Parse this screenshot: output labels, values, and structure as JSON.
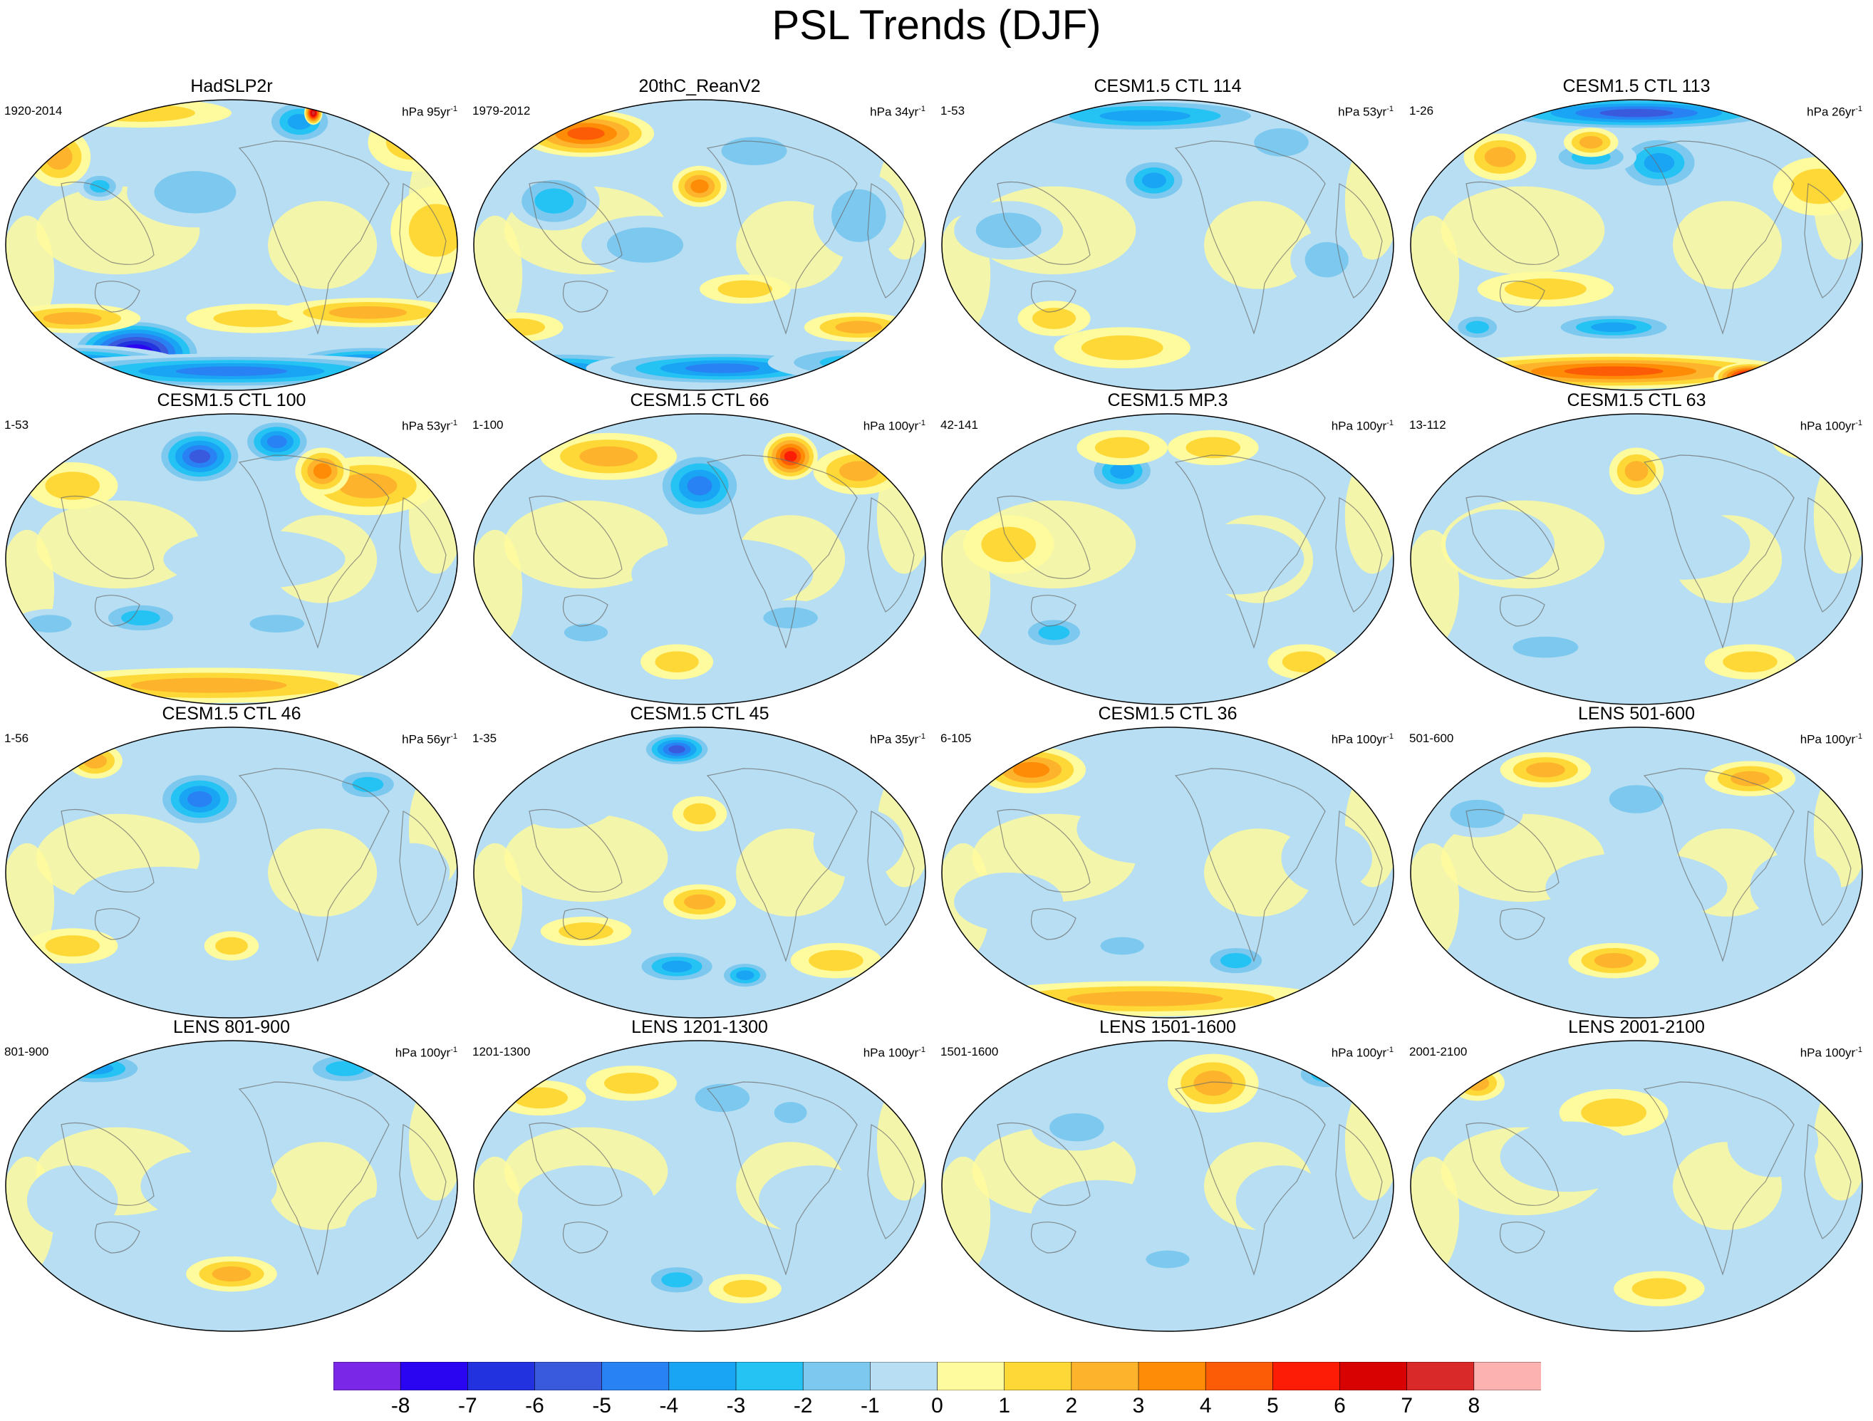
{
  "chart_data": {
    "type": "heatmap",
    "title": "PSL Trends (DJF)",
    "projection": "Robinson (Pacific-centered)",
    "units_label": "hPa",
    "panels": [
      {
        "title": "HadSLP2r",
        "period": "1920-2014",
        "units": "hPa 95yr",
        "units_years": 95,
        "blobs": [
          [
            0.29,
            0.87,
            0.15,
            0.12,
            -9
          ],
          [
            0.15,
            0.91,
            0.25,
            0.07,
            -6
          ],
          [
            0.8,
            0.91,
            0.2,
            0.07,
            -6
          ],
          [
            0.5,
            0.93,
            0.45,
            0.06,
            -5
          ],
          [
            0.15,
            0.75,
            0.15,
            0.05,
            3
          ],
          [
            0.55,
            0.75,
            0.15,
            0.05,
            2
          ],
          [
            0.8,
            0.73,
            0.2,
            0.05,
            3
          ],
          [
            0.12,
            0.2,
            0.07,
            0.1,
            3
          ],
          [
            0.21,
            0.3,
            0.05,
            0.05,
            -3
          ],
          [
            0.65,
            0.08,
            0.08,
            0.08,
            -4
          ],
          [
            0.68,
            0.05,
            0.02,
            0.04,
            8
          ],
          [
            0.3,
            0.05,
            0.2,
            0.05,
            2
          ],
          [
            0.9,
            0.15,
            0.1,
            0.1,
            2
          ],
          [
            0.42,
            0.32,
            0.15,
            0.12,
            -2
          ],
          [
            0.95,
            0.45,
            0.1,
            0.15,
            2
          ]
        ]
      },
      {
        "title": "20thC_ReanV2",
        "period": "1979-2012",
        "units": "hPa 34yr",
        "units_years": 34,
        "blobs": [
          [
            0.25,
            0.12,
            0.15,
            0.08,
            5
          ],
          [
            0.5,
            0.3,
            0.06,
            0.07,
            4
          ],
          [
            0.18,
            0.35,
            0.1,
            0.1,
            -3
          ],
          [
            0.2,
            0.92,
            0.25,
            0.06,
            -4
          ],
          [
            0.55,
            0.92,
            0.3,
            0.06,
            -5
          ],
          [
            0.85,
            0.9,
            0.2,
            0.06,
            -3
          ],
          [
            0.1,
            0.78,
            0.1,
            0.05,
            2
          ],
          [
            0.85,
            0.78,
            0.12,
            0.05,
            3
          ],
          [
            0.6,
            0.65,
            0.1,
            0.05,
            2
          ],
          [
            0.85,
            0.4,
            0.1,
            0.15,
            -2
          ],
          [
            0.62,
            0.18,
            0.12,
            0.08,
            -2
          ],
          [
            0.38,
            0.5,
            0.14,
            0.1,
            -2
          ]
        ]
      },
      {
        "title": "CESM1.5 CTL 114",
        "period": "1-53",
        "units": "hPa 53yr",
        "units_years": 53,
        "blobs": [
          [
            0.45,
            0.06,
            0.3,
            0.06,
            -4
          ],
          [
            0.47,
            0.28,
            0.08,
            0.08,
            -4
          ],
          [
            0.75,
            0.15,
            0.1,
            0.08,
            -2
          ],
          [
            0.4,
            0.85,
            0.15,
            0.07,
            2
          ],
          [
            0.25,
            0.75,
            0.08,
            0.06,
            2
          ],
          [
            0.85,
            0.55,
            0.08,
            0.1,
            -2
          ],
          [
            0.15,
            0.45,
            0.12,
            0.1,
            -2
          ]
        ]
      },
      {
        "title": "CESM1.5 CTL 113",
        "period": "1-26",
        "units": "hPa 26yr",
        "units_years": 26,
        "blobs": [
          [
            0.5,
            0.05,
            0.35,
            0.06,
            -6
          ],
          [
            0.55,
            0.22,
            0.1,
            0.1,
            -4
          ],
          [
            0.4,
            0.2,
            0.1,
            0.06,
            -3
          ],
          [
            0.45,
            0.93,
            0.4,
            0.06,
            5
          ],
          [
            0.75,
            0.95,
            0.08,
            0.05,
            8
          ],
          [
            0.45,
            0.78,
            0.15,
            0.05,
            -4
          ],
          [
            0.15,
            0.78,
            0.06,
            0.05,
            -3
          ],
          [
            0.2,
            0.2,
            0.08,
            0.08,
            3
          ],
          [
            0.4,
            0.15,
            0.06,
            0.05,
            3
          ],
          [
            0.3,
            0.65,
            0.15,
            0.06,
            2
          ],
          [
            0.9,
            0.3,
            0.1,
            0.1,
            2
          ]
        ]
      },
      {
        "title": "CESM1.5 CTL 100",
        "period": "1-53",
        "units": "hPa 53yr",
        "units_years": 53,
        "blobs": [
          [
            0.43,
            0.15,
            0.1,
            0.1,
            -6
          ],
          [
            0.6,
            0.1,
            0.08,
            0.08,
            -5
          ],
          [
            0.8,
            0.25,
            0.15,
            0.1,
            3
          ],
          [
            0.7,
            0.2,
            0.06,
            0.08,
            4
          ],
          [
            0.45,
            0.93,
            0.4,
            0.06,
            3
          ],
          [
            0.3,
            0.7,
            0.1,
            0.06,
            -3
          ],
          [
            0.1,
            0.72,
            0.08,
            0.05,
            -2
          ],
          [
            0.6,
            0.72,
            0.1,
            0.05,
            -2
          ],
          [
            0.15,
            0.25,
            0.1,
            0.08,
            2
          ],
          [
            0.55,
            0.5,
            0.2,
            0.1,
            -1
          ]
        ]
      },
      {
        "title": "CESM1.5 CTL 66",
        "period": "1-100",
        "units": "hPa 100yr",
        "units_years": 100,
        "blobs": [
          [
            0.5,
            0.25,
            0.1,
            0.12,
            -5
          ],
          [
            0.7,
            0.15,
            0.06,
            0.08,
            6
          ],
          [
            0.3,
            0.15,
            0.15,
            0.08,
            3
          ],
          [
            0.85,
            0.2,
            0.1,
            0.08,
            3
          ],
          [
            0.45,
            0.85,
            0.08,
            0.06,
            2
          ],
          [
            0.25,
            0.75,
            0.08,
            0.05,
            -2
          ],
          [
            0.7,
            0.7,
            0.1,
            0.06,
            -2
          ],
          [
            0.55,
            0.55,
            0.2,
            0.12,
            -1
          ]
        ]
      },
      {
        "title": "CESM1.5 MP.3",
        "period": "42-141",
        "units": "hPa 100yr",
        "units_years": 100,
        "blobs": [
          [
            0.4,
            0.2,
            0.08,
            0.08,
            -4
          ],
          [
            0.25,
            0.75,
            0.08,
            0.06,
            -3
          ],
          [
            0.4,
            0.12,
            0.1,
            0.06,
            2
          ],
          [
            0.6,
            0.12,
            0.1,
            0.06,
            2
          ],
          [
            0.8,
            0.85,
            0.08,
            0.06,
            2
          ],
          [
            0.65,
            0.5,
            0.15,
            0.12,
            -1
          ],
          [
            0.15,
            0.45,
            0.1,
            0.1,
            2
          ]
        ]
      },
      {
        "title": "CESM1.5 CTL 63",
        "period": "13-112",
        "units": "hPa 100yr",
        "units_years": 100,
        "blobs": [
          [
            0.08,
            0.12,
            0.06,
            0.06,
            4
          ],
          [
            0.5,
            0.2,
            0.06,
            0.08,
            3
          ],
          [
            0.88,
            0.1,
            0.08,
            0.06,
            3
          ],
          [
            0.3,
            0.8,
            0.12,
            0.06,
            -2
          ],
          [
            0.75,
            0.85,
            0.1,
            0.06,
            2
          ],
          [
            0.6,
            0.45,
            0.15,
            0.12,
            -1
          ],
          [
            0.2,
            0.45,
            0.12,
            0.12,
            -1
          ]
        ]
      },
      {
        "title": "CESM1.5 CTL 46",
        "period": "1-56",
        "units": "hPa 56yr",
        "units_years": 56,
        "blobs": [
          [
            0.43,
            0.25,
            0.1,
            0.1,
            -5
          ],
          [
            0.2,
            0.12,
            0.06,
            0.06,
            3
          ],
          [
            0.8,
            0.2,
            0.08,
            0.06,
            -3
          ],
          [
            0.15,
            0.75,
            0.1,
            0.06,
            2
          ],
          [
            0.5,
            0.75,
            0.06,
            0.05,
            2
          ],
          [
            0.35,
            0.6,
            0.2,
            0.12,
            -1
          ],
          [
            0.9,
            0.5,
            0.08,
            0.1,
            -1
          ]
        ]
      },
      {
        "title": "CESM1.5 CTL 45",
        "period": "1-35",
        "units": "hPa 35yr",
        "units_years": 35,
        "blobs": [
          [
            0.45,
            0.08,
            0.08,
            0.06,
            -6
          ],
          [
            0.5,
            0.6,
            0.08,
            0.06,
            3
          ],
          [
            0.45,
            0.82,
            0.1,
            0.06,
            -4
          ],
          [
            0.6,
            0.85,
            0.06,
            0.05,
            -4
          ],
          [
            0.25,
            0.7,
            0.1,
            0.05,
            2
          ],
          [
            0.8,
            0.8,
            0.1,
            0.06,
            2
          ],
          [
            0.5,
            0.3,
            0.06,
            0.06,
            2
          ],
          [
            0.2,
            0.25,
            0.12,
            0.1,
            -1
          ],
          [
            0.85,
            0.4,
            0.1,
            0.12,
            -1
          ]
        ]
      },
      {
        "title": "CESM1.5 CTL 36",
        "period": "6-105",
        "units": "hPa 100yr",
        "units_years": 100,
        "blobs": [
          [
            0.2,
            0.15,
            0.12,
            0.08,
            4
          ],
          [
            0.45,
            0.93,
            0.4,
            0.06,
            3
          ],
          [
            0.4,
            0.75,
            0.08,
            0.05,
            -2
          ],
          [
            0.65,
            0.8,
            0.08,
            0.06,
            -3
          ],
          [
            0.45,
            0.35,
            0.15,
            0.12,
            -1
          ],
          [
            0.85,
            0.45,
            0.1,
            0.12,
            -1
          ],
          [
            0.15,
            0.6,
            0.12,
            0.1,
            -1
          ]
        ]
      },
      {
        "title": "LENS 501-600",
        "period": "501-600",
        "units": "hPa 100yr",
        "units_years": 100,
        "blobs": [
          [
            0.3,
            0.15,
            0.1,
            0.06,
            3
          ],
          [
            0.75,
            0.18,
            0.1,
            0.06,
            3
          ],
          [
            0.45,
            0.8,
            0.1,
            0.06,
            3
          ],
          [
            0.5,
            0.25,
            0.1,
            0.08,
            -2
          ],
          [
            0.15,
            0.3,
            0.1,
            0.08,
            -2
          ],
          [
            0.5,
            0.55,
            0.2,
            0.12,
            -1
          ],
          [
            0.85,
            0.55,
            0.1,
            0.12,
            -1
          ]
        ]
      },
      {
        "title": "LENS 801-900",
        "period": "801-900",
        "units": "hPa 100yr",
        "units_years": 100,
        "blobs": [
          [
            0.2,
            0.1,
            0.12,
            0.06,
            -4
          ],
          [
            0.75,
            0.1,
            0.1,
            0.06,
            -3
          ],
          [
            0.5,
            0.8,
            0.1,
            0.06,
            3
          ],
          [
            0.45,
            0.5,
            0.15,
            0.12,
            -1
          ],
          [
            0.15,
            0.55,
            0.1,
            0.12,
            -1
          ],
          [
            0.85,
            0.65,
            0.1,
            0.12,
            -1
          ]
        ]
      },
      {
        "title": "LENS 1201-1300",
        "period": "1201-1300",
        "units": "hPa 100yr",
        "units_years": 100,
        "blobs": [
          [
            0.45,
            0.82,
            0.08,
            0.06,
            -3
          ],
          [
            0.6,
            0.85,
            0.08,
            0.05,
            2
          ],
          [
            0.15,
            0.2,
            0.1,
            0.06,
            2
          ],
          [
            0.35,
            0.15,
            0.1,
            0.06,
            2
          ],
          [
            0.55,
            0.2,
            0.1,
            0.08,
            -2
          ],
          [
            0.7,
            0.25,
            0.06,
            0.06,
            -2
          ],
          [
            0.25,
            0.55,
            0.15,
            0.12,
            -1
          ],
          [
            0.75,
            0.55,
            0.12,
            0.12,
            -1
          ]
        ]
      },
      {
        "title": "LENS 1501-1600",
        "period": "1501-1600",
        "units": "hPa 100yr",
        "units_years": 100,
        "blobs": [
          [
            0.6,
            0.15,
            0.1,
            0.1,
            3
          ],
          [
            0.3,
            0.3,
            0.1,
            0.08,
            -2
          ],
          [
            0.5,
            0.75,
            0.08,
            0.05,
            -2
          ],
          [
            0.85,
            0.12,
            0.08,
            0.06,
            -3
          ],
          [
            0.35,
            0.6,
            0.15,
            0.12,
            -1
          ],
          [
            0.75,
            0.55,
            0.1,
            0.12,
            -1
          ]
        ]
      },
      {
        "title": "LENS 2001-2100",
        "period": "2001-2100",
        "units": "hPa 100yr",
        "units_years": 100,
        "blobs": [
          [
            0.15,
            0.15,
            0.06,
            0.06,
            3
          ],
          [
            0.45,
            0.25,
            0.12,
            0.08,
            2
          ],
          [
            0.55,
            0.85,
            0.1,
            0.06,
            2
          ],
          [
            0.35,
            0.4,
            0.15,
            0.12,
            -1
          ],
          [
            0.8,
            0.35,
            0.1,
            0.12,
            -1
          ],
          [
            0.25,
            0.7,
            0.1,
            0.1,
            -1
          ]
        ]
      }
    ],
    "colorbar": {
      "ticks": [
        "-8",
        "-7",
        "-6",
        "-5",
        "-4",
        "-3",
        "-2",
        "-1",
        "0",
        "1",
        "2",
        "3",
        "4",
        "5",
        "6",
        "7",
        "8"
      ],
      "colors": [
        "#7b27e8",
        "#2a05f2",
        "#2232de",
        "#3a5ade",
        "#2882f4",
        "#1aa4f4",
        "#24c3f4",
        "#7cc8ee",
        "#b7def2",
        "#fefa9e",
        "#fdd836",
        "#fdb42c",
        "#fe8c06",
        "#fd5c06",
        "#fd1d06",
        "#d80202",
        "#d92929",
        "#fdb2b2"
      ]
    }
  }
}
